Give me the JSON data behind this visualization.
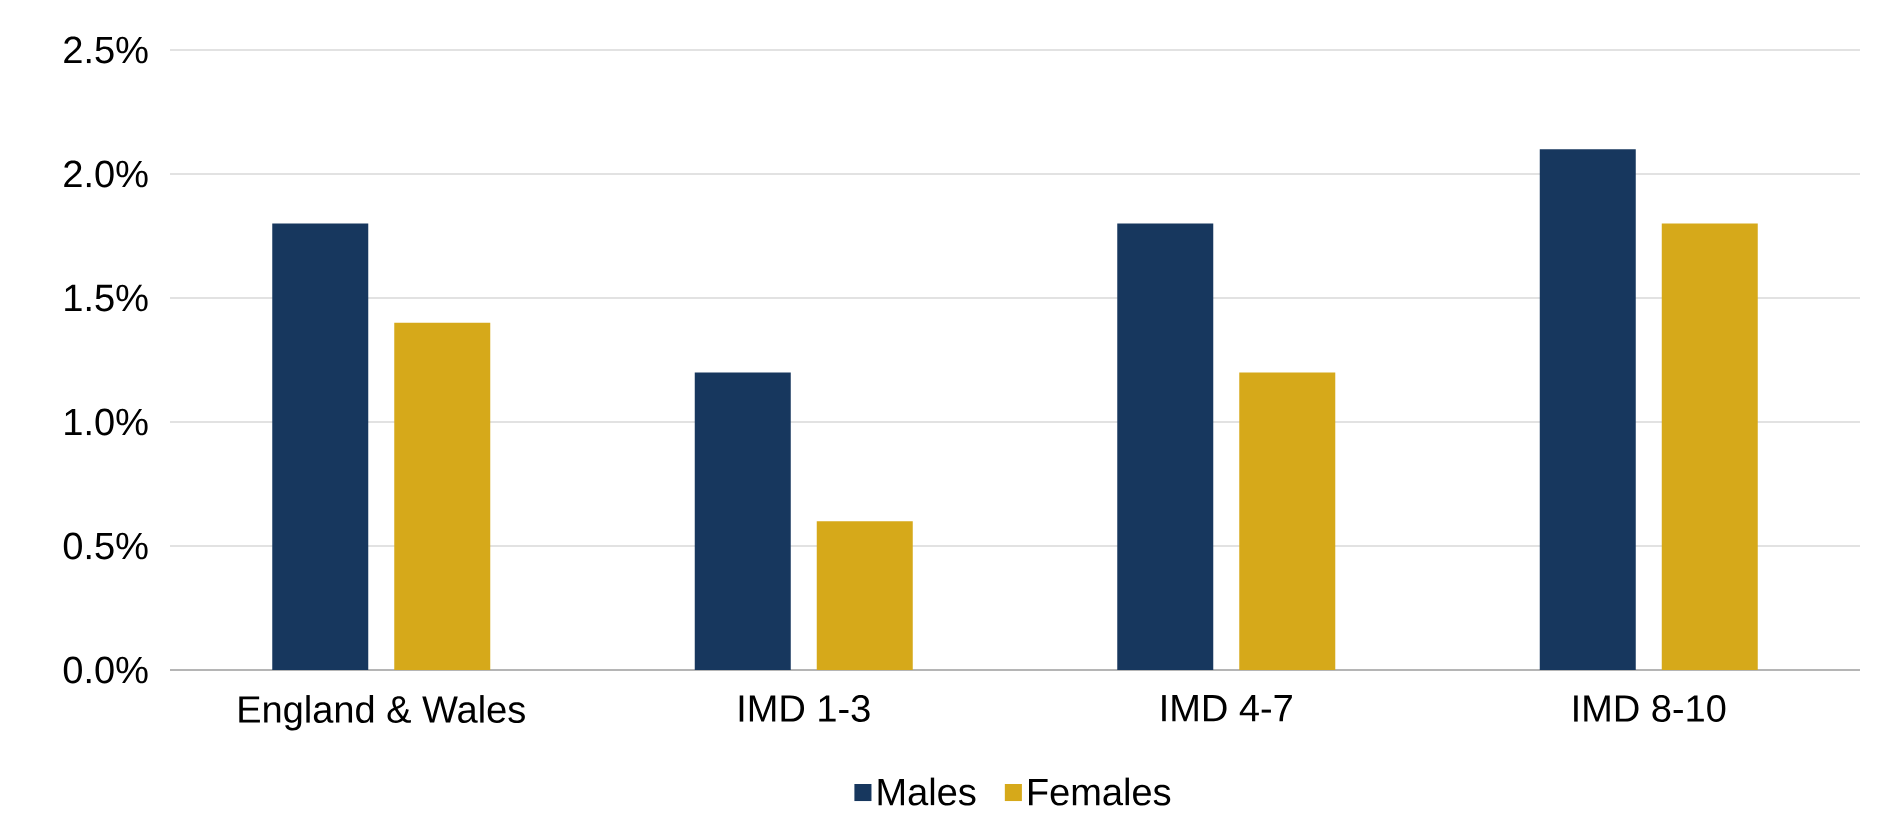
{
  "chart_data": {
    "type": "bar",
    "categories": [
      "England & Wales",
      "IMD 1-3",
      "IMD 4-7",
      "IMD 8-10"
    ],
    "series": [
      {
        "name": "Males",
        "color": "#17375e",
        "values": [
          1.8,
          1.2,
          1.8,
          2.1
        ]
      },
      {
        "name": "Females",
        "color": "#d6a91a",
        "values": [
          1.4,
          0.6,
          1.2,
          1.8
        ]
      }
    ],
    "ylim": [
      0,
      2.5
    ],
    "yticks": [
      {
        "value": 0,
        "label": "0.0%"
      },
      {
        "value": 0.5,
        "label": "0.5%"
      },
      {
        "value": 1.0,
        "label": "1.0%"
      },
      {
        "value": 1.5,
        "label": "1.5%"
      },
      {
        "value": 2.0,
        "label": "2.0%"
      },
      {
        "value": 2.5,
        "label": "2.5%"
      }
    ],
    "grid": "y",
    "legend": "bottom"
  }
}
